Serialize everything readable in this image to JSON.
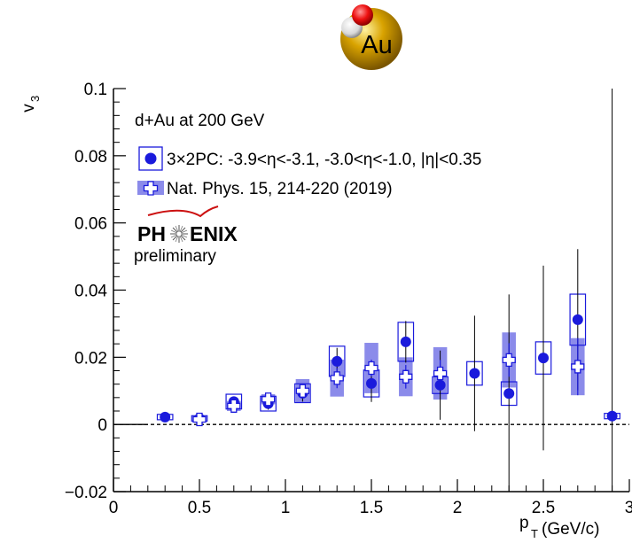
{
  "chart_data": {
    "type": "scatter",
    "badge": {
      "label": "Au",
      "colors": {
        "gold": "#d9a300",
        "nucleon_red": "#ee1111",
        "nucleon_white": "#e8e8e8"
      }
    },
    "ylabel_main": "v",
    "ylabel_sub": "3",
    "xlabel_main": "p",
    "xlabel_sub": "T",
    "xlabel_unit": "(GeV/c)",
    "xlim": [
      0,
      3
    ],
    "ylim": [
      -0.02,
      0.1
    ],
    "x_ticks": [
      "0",
      "0.5",
      "1",
      "1.5",
      "2",
      "2.5",
      "3"
    ],
    "y_ticks": [
      "−0.02",
      "0",
      "0.02",
      "0.04",
      "0.06",
      "0.08",
      "0.1"
    ],
    "y_tick_values": [
      -0.02,
      0,
      0.02,
      0.04,
      0.06,
      0.08,
      0.1
    ],
    "x_tick_values": [
      0,
      0.5,
      1,
      1.5,
      2,
      2.5,
      3
    ],
    "system_label": "d+Au at 200 GeV",
    "legend_position": "top-left",
    "logo": {
      "word_left": "PH",
      "word_right": "ENIX",
      "sublabel": "preliminary",
      "arc_color": "#cc1111"
    },
    "colors": {
      "series": "#1a1adc",
      "band": "#8b8bea",
      "axis": "#000000",
      "zero_line": "#000000"
    },
    "series": [
      {
        "name": "3×2PC: -3.9<η<-3.1, -3.0<η<-1.0, |η|<0.35",
        "style": "filled-circle-open-box",
        "points": [
          {
            "x": 0.3,
            "y": 0.0022,
            "err": 0.0006,
            "sys": 0.0008
          },
          {
            "x": 0.5,
            "y": 0.0018,
            "err": 0.0012,
            "sys": 0.0008
          },
          {
            "x": 0.7,
            "y": 0.0068,
            "err": 0.0015,
            "sys": 0.0022
          },
          {
            "x": 0.9,
            "y": 0.0062,
            "err": 0.0018,
            "sys": 0.0022
          },
          {
            "x": 1.1,
            "y": 0.0093,
            "err": 0.0025,
            "sys": 0.0028
          },
          {
            "x": 1.3,
            "y": 0.0188,
            "err": 0.004,
            "sys": 0.0045
          },
          {
            "x": 1.5,
            "y": 0.0122,
            "err": 0.0055,
            "sys": 0.004
          },
          {
            "x": 1.7,
            "y": 0.0246,
            "err": 0.0062,
            "sys": 0.0058
          },
          {
            "x": 1.9,
            "y": 0.0117,
            "err": 0.0103,
            "sys": 0.0025
          },
          {
            "x": 2.1,
            "y": 0.0152,
            "err": 0.0172,
            "sys": 0.0035
          },
          {
            "x": 2.3,
            "y": 0.0092,
            "err": 0.0295,
            "sys": 0.0035
          },
          {
            "x": 2.5,
            "y": 0.0198,
            "err": 0.0275,
            "sys": 0.0048
          },
          {
            "x": 2.7,
            "y": 0.0312,
            "err": 0.021,
            "sys": 0.0076
          },
          {
            "x": 2.9,
            "y": 0.0025,
            "err": 0.2,
            "sys": 0.0008
          }
        ]
      },
      {
        "name": "Nat. Phys. 15, 214-220 (2019)",
        "style": "open-cross-filled-band",
        "points": [
          {
            "x": 0.5,
            "y": 0.0015,
            "err": 0.0005,
            "sys": 0.0008
          },
          {
            "x": 0.7,
            "y": 0.0055,
            "err": 0.001,
            "sys": 0.0015
          },
          {
            "x": 0.9,
            "y": 0.0075,
            "err": 0.0012,
            "sys": 0.0015
          },
          {
            "x": 1.1,
            "y": 0.01,
            "err": 0.0018,
            "sys": 0.0035
          },
          {
            "x": 1.3,
            "y": 0.0138,
            "err": 0.003,
            "sys": 0.0055
          },
          {
            "x": 1.5,
            "y": 0.0168,
            "err": 0.0025,
            "sys": 0.0075
          },
          {
            "x": 1.7,
            "y": 0.0142,
            "err": 0.0035,
            "sys": 0.0058
          },
          {
            "x": 1.9,
            "y": 0.0152,
            "err": 0.004,
            "sys": 0.0078
          },
          {
            "x": 2.3,
            "y": 0.0192,
            "err": 0.005,
            "sys": 0.0082
          },
          {
            "x": 2.7,
            "y": 0.0172,
            "err": 0.0085,
            "sys": 0.0085
          }
        ]
      }
    ]
  }
}
